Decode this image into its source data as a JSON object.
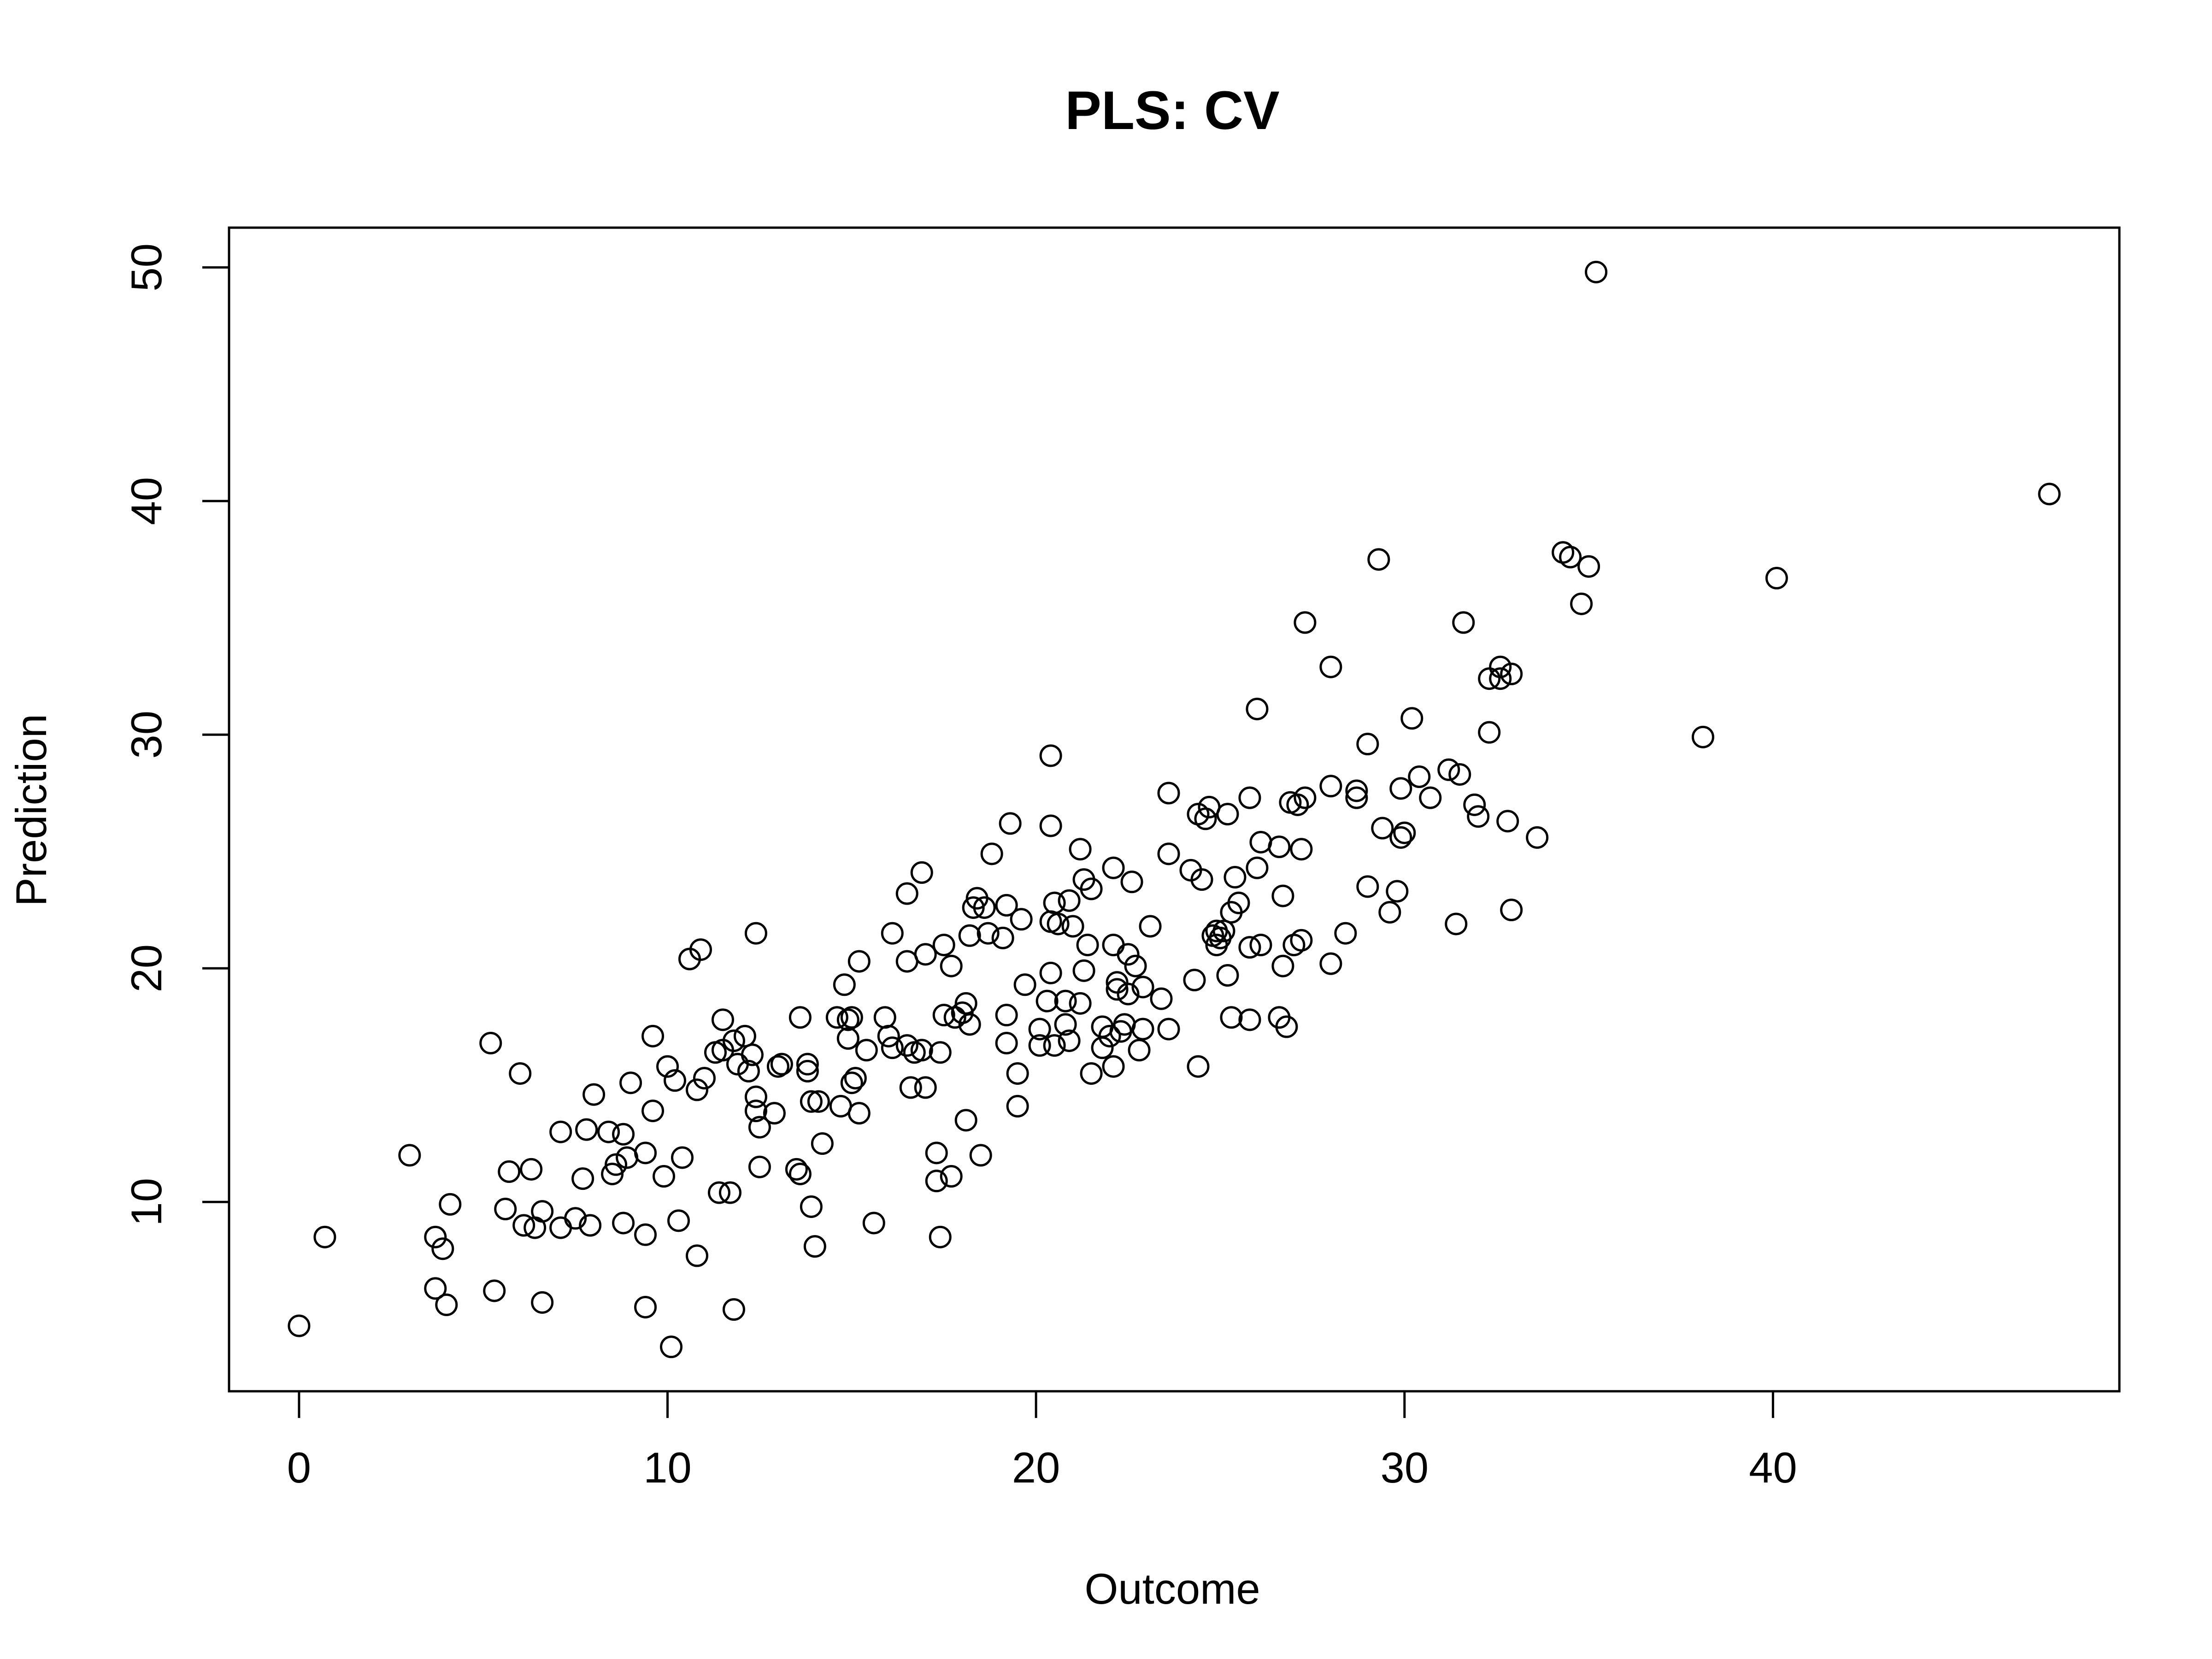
{
  "chart_data": {
    "type": "scatter",
    "title": "PLS: CV",
    "xlabel": "Outcome",
    "ylabel": "Prediction",
    "xlim": [
      -1.9,
      49.4
    ],
    "ylim": [
      1.9,
      51.7
    ],
    "xticks": [
      0,
      10,
      20,
      30,
      40
    ],
    "yticks": [
      10,
      20,
      30,
      40,
      50
    ],
    "xtick_labels": [
      "0",
      "10",
      "20",
      "30",
      "40"
    ],
    "ytick_labels": [
      "10",
      "20",
      "30",
      "40",
      "50"
    ],
    "grid": false,
    "legend": "none",
    "marker": "open-circle",
    "point_color": "#000000",
    "points": [
      [
        0.0,
        4.7
      ],
      [
        0.7,
        8.5
      ],
      [
        3.0,
        12.0
      ],
      [
        3.7,
        8.5
      ],
      [
        3.7,
        6.3
      ],
      [
        3.9,
        8.0
      ],
      [
        4.0,
        5.6
      ],
      [
        4.1,
        9.9
      ],
      [
        5.2,
        16.8
      ],
      [
        5.3,
        6.2
      ],
      [
        5.6,
        9.7
      ],
      [
        5.7,
        11.3
      ],
      [
        6.0,
        15.5
      ],
      [
        6.1,
        9.0
      ],
      [
        6.3,
        11.4
      ],
      [
        6.4,
        8.9
      ],
      [
        6.6,
        9.6
      ],
      [
        6.6,
        5.7
      ],
      [
        7.1,
        8.9
      ],
      [
        7.1,
        13.0
      ],
      [
        7.5,
        9.3
      ],
      [
        7.7,
        11.0
      ],
      [
        7.8,
        13.1
      ],
      [
        7.9,
        9.0
      ],
      [
        8.0,
        14.6
      ],
      [
        8.4,
        13.0
      ],
      [
        8.5,
        11.2
      ],
      [
        8.6,
        11.6
      ],
      [
        8.8,
        12.9
      ],
      [
        8.8,
        9.1
      ],
      [
        8.9,
        11.9
      ],
      [
        9.0,
        15.1
      ],
      [
        9.4,
        12.1
      ],
      [
        9.4,
        8.6
      ],
      [
        9.4,
        5.5
      ],
      [
        9.6,
        17.1
      ],
      [
        9.6,
        13.9
      ],
      [
        9.9,
        11.1
      ],
      [
        10.0,
        15.8
      ],
      [
        10.1,
        3.8
      ],
      [
        10.2,
        15.2
      ],
      [
        10.3,
        9.2
      ],
      [
        10.4,
        11.9
      ],
      [
        10.6,
        20.4
      ],
      [
        10.8,
        14.8
      ],
      [
        10.8,
        7.7
      ],
      [
        10.9,
        20.8
      ],
      [
        11.0,
        15.3
      ],
      [
        11.3,
        16.4
      ],
      [
        11.4,
        10.4
      ],
      [
        11.5,
        17.8
      ],
      [
        11.5,
        16.5
      ],
      [
        11.7,
        10.4
      ],
      [
        11.8,
        5.4
      ],
      [
        11.8,
        16.9
      ],
      [
        11.9,
        15.9
      ],
      [
        12.1,
        17.1
      ],
      [
        12.2,
        15.6
      ],
      [
        12.3,
        16.3
      ],
      [
        12.4,
        14.5
      ],
      [
        12.4,
        13.9
      ],
      [
        12.4,
        21.5
      ],
      [
        12.5,
        11.5
      ],
      [
        12.5,
        13.2
      ],
      [
        12.9,
        13.8
      ],
      [
        13.0,
        15.8
      ],
      [
        13.1,
        15.9
      ],
      [
        13.5,
        11.4
      ],
      [
        13.6,
        17.9
      ],
      [
        13.6,
        11.2
      ],
      [
        13.8,
        15.6
      ],
      [
        13.8,
        15.9
      ],
      [
        13.9,
        9.8
      ],
      [
        13.9,
        14.3
      ],
      [
        14.0,
        8.1
      ],
      [
        14.1,
        14.3
      ],
      [
        14.2,
        12.5
      ],
      [
        14.6,
        17.9
      ],
      [
        14.7,
        14.1
      ],
      [
        14.8,
        19.3
      ],
      [
        14.9,
        17.8
      ],
      [
        14.9,
        17.0
      ],
      [
        15.0,
        15.1
      ],
      [
        15.0,
        17.9
      ],
      [
        15.1,
        15.3
      ],
      [
        15.2,
        13.8
      ],
      [
        15.2,
        20.3
      ],
      [
        15.4,
        16.5
      ],
      [
        15.6,
        9.1
      ],
      [
        15.9,
        17.9
      ],
      [
        16.0,
        17.1
      ],
      [
        16.1,
        16.6
      ],
      [
        16.1,
        21.5
      ],
      [
        16.5,
        20.3
      ],
      [
        16.5,
        23.2
      ],
      [
        16.5,
        16.7
      ],
      [
        16.6,
        14.9
      ],
      [
        16.7,
        16.4
      ],
      [
        16.9,
        24.1
      ],
      [
        16.9,
        16.5
      ],
      [
        17.0,
        14.9
      ],
      [
        17.0,
        20.6
      ],
      [
        17.3,
        12.1
      ],
      [
        17.3,
        10.9
      ],
      [
        17.4,
        16.4
      ],
      [
        17.4,
        8.5
      ],
      [
        17.5,
        21.0
      ],
      [
        17.5,
        18.0
      ],
      [
        17.7,
        11.1
      ],
      [
        17.7,
        20.1
      ],
      [
        17.8,
        17.9
      ],
      [
        18.0,
        18.1
      ],
      [
        18.1,
        18.5
      ],
      [
        18.1,
        13.5
      ],
      [
        18.2,
        17.6
      ],
      [
        18.2,
        21.4
      ],
      [
        18.3,
        22.6
      ],
      [
        18.4,
        23.0
      ],
      [
        18.5,
        12.0
      ],
      [
        18.6,
        22.6
      ],
      [
        18.7,
        21.5
      ],
      [
        18.8,
        24.9
      ],
      [
        19.1,
        21.3
      ],
      [
        19.2,
        18.0
      ],
      [
        19.2,
        16.8
      ],
      [
        19.2,
        22.7
      ],
      [
        19.3,
        26.2
      ],
      [
        19.5,
        14.1
      ],
      [
        19.5,
        15.5
      ],
      [
        19.6,
        22.1
      ],
      [
        19.7,
        19.3
      ],
      [
        20.1,
        17.4
      ],
      [
        20.1,
        16.7
      ],
      [
        20.3,
        18.6
      ],
      [
        20.4,
        19.8
      ],
      [
        20.4,
        22.0
      ],
      [
        20.4,
        29.1
      ],
      [
        20.4,
        26.1
      ],
      [
        20.5,
        22.8
      ],
      [
        20.5,
        16.7
      ],
      [
        20.6,
        21.9
      ],
      [
        20.8,
        17.6
      ],
      [
        20.8,
        18.6
      ],
      [
        20.9,
        16.9
      ],
      [
        20.9,
        22.9
      ],
      [
        21.0,
        21.8
      ],
      [
        21.2,
        25.1
      ],
      [
        21.2,
        18.5
      ],
      [
        21.3,
        19.9
      ],
      [
        21.3,
        23.8
      ],
      [
        21.4,
        21.0
      ],
      [
        21.5,
        15.5
      ],
      [
        21.5,
        23.4
      ],
      [
        21.8,
        17.5
      ],
      [
        21.8,
        16.6
      ],
      [
        22.0,
        17.1
      ],
      [
        22.1,
        15.8
      ],
      [
        22.1,
        24.3
      ],
      [
        22.1,
        21.0
      ],
      [
        22.2,
        19.1
      ],
      [
        22.2,
        19.4
      ],
      [
        22.3,
        17.3
      ],
      [
        22.4,
        17.6
      ],
      [
        22.5,
        20.6
      ],
      [
        22.5,
        18.9
      ],
      [
        22.6,
        23.7
      ],
      [
        22.7,
        20.1
      ],
      [
        22.8,
        16.5
      ],
      [
        22.9,
        19.2
      ],
      [
        22.9,
        17.4
      ],
      [
        23.1,
        21.8
      ],
      [
        23.4,
        18.7
      ],
      [
        23.6,
        27.5
      ],
      [
        23.6,
        24.9
      ],
      [
        23.6,
        17.4
      ],
      [
        24.2,
        24.2
      ],
      [
        24.3,
        19.5
      ],
      [
        24.4,
        15.8
      ],
      [
        24.4,
        26.6
      ],
      [
        24.5,
        23.8
      ],
      [
        24.6,
        26.4
      ],
      [
        24.7,
        26.9
      ],
      [
        24.8,
        21.4
      ],
      [
        24.9,
        21.6
      ],
      [
        24.9,
        21.0
      ],
      [
        25.0,
        21.3
      ],
      [
        25.1,
        21.6
      ],
      [
        25.2,
        26.6
      ],
      [
        25.2,
        19.7
      ],
      [
        25.3,
        17.9
      ],
      [
        25.3,
        22.4
      ],
      [
        25.4,
        23.9
      ],
      [
        25.5,
        22.8
      ],
      [
        25.8,
        17.8
      ],
      [
        25.8,
        27.3
      ],
      [
        25.8,
        20.9
      ],
      [
        26.0,
        31.1
      ],
      [
        26.0,
        24.3
      ],
      [
        26.1,
        25.4
      ],
      [
        26.1,
        21.0
      ],
      [
        26.6,
        25.2
      ],
      [
        26.6,
        17.9
      ],
      [
        26.7,
        23.1
      ],
      [
        26.7,
        20.1
      ],
      [
        26.8,
        17.5
      ],
      [
        26.9,
        27.1
      ],
      [
        27.0,
        21.0
      ],
      [
        27.1,
        27.0
      ],
      [
        27.2,
        25.1
      ],
      [
        27.2,
        21.2
      ],
      [
        27.3,
        27.3
      ],
      [
        27.3,
        34.8
      ],
      [
        28.0,
        20.2
      ],
      [
        28.0,
        27.8
      ],
      [
        28.0,
        32.9
      ],
      [
        28.4,
        21.5
      ],
      [
        28.7,
        27.3
      ],
      [
        28.7,
        27.6
      ],
      [
        29.0,
        23.5
      ],
      [
        29.0,
        29.6
      ],
      [
        29.3,
        37.5
      ],
      [
        29.4,
        26.0
      ],
      [
        29.6,
        22.4
      ],
      [
        29.8,
        23.3
      ],
      [
        29.9,
        27.7
      ],
      [
        29.9,
        25.6
      ],
      [
        30.0,
        25.8
      ],
      [
        30.2,
        30.7
      ],
      [
        30.4,
        28.2
      ],
      [
        30.7,
        27.3
      ],
      [
        31.2,
        28.5
      ],
      [
        31.4,
        21.9
      ],
      [
        31.5,
        28.3
      ],
      [
        31.6,
        34.8
      ],
      [
        31.9,
        27.0
      ],
      [
        32.0,
        26.5
      ],
      [
        32.3,
        30.1
      ],
      [
        32.3,
        32.4
      ],
      [
        32.6,
        32.4
      ],
      [
        32.6,
        32.9
      ],
      [
        32.8,
        26.3
      ],
      [
        32.9,
        22.5
      ],
      [
        32.9,
        32.6
      ],
      [
        33.6,
        25.6
      ],
      [
        34.3,
        37.8
      ],
      [
        34.5,
        37.6
      ],
      [
        34.8,
        35.6
      ],
      [
        35.0,
        37.2
      ],
      [
        35.2,
        49.8
      ],
      [
        38.1,
        29.9
      ],
      [
        40.1,
        36.7
      ],
      [
        47.5,
        40.3
      ]
    ]
  }
}
